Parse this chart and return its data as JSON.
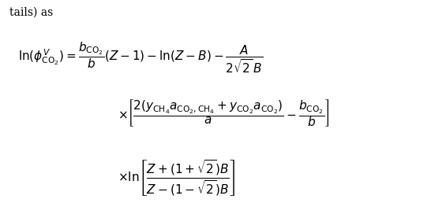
{
  "background_color": "#ffffff",
  "text_color": "#000000",
  "figsize": [
    5.51,
    2.58
  ],
  "dpi": 100,
  "partial_title": "tails) as",
  "equation_line1": "$\\ln(\\phi^{V}_{\\mathrm{CO}_2}) = \\dfrac{b_{\\mathrm{CO}_2}}{b}(Z-1) - \\ln(Z-B) - \\dfrac{A}{2\\sqrt{2}\\,B}$",
  "equation_line2": "$\\times\\left[\\dfrac{2(y_{\\mathrm{CH}_4}a_{\\mathrm{CO}_2,\\mathrm{CH}_4} + y_{\\mathrm{CO}_2}a_{\\mathrm{CO}_2})}{a} - \\dfrac{b_{\\mathrm{CO}_2}}{b}\\right]$",
  "equation_line3": "$\\times \\ln\\!\\left[\\dfrac{Z+(1+\\sqrt{2})B}{Z-(1-\\sqrt{2})B}\\right]$"
}
